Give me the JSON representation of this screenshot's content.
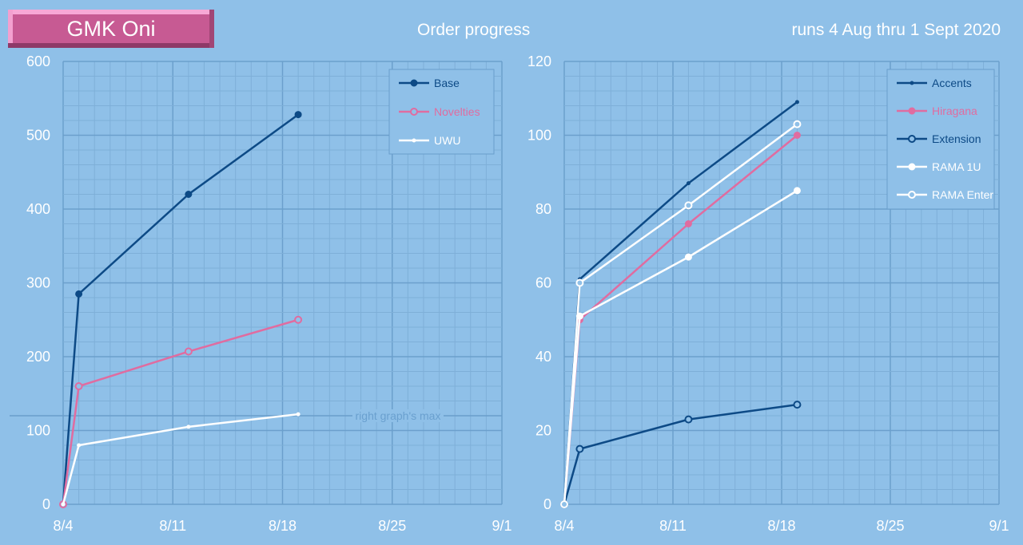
{
  "title": "GMK Oni",
  "subtitle_center": "Order progress",
  "subtitle_right": "runs 4 Aug thru 1 Sept 2020",
  "colors": {
    "background": "#8fc0e8",
    "dark_blue": "#0d4a86",
    "pink": "#e06ca0",
    "white": "#ffffff",
    "grid_minor": "#7eafd8",
    "grid_major": "#6b9fcc",
    "title_badge": "#c75a93"
  },
  "chart_data": [
    {
      "type": "line",
      "x_ticks": [
        "8/4",
        "8/11",
        "8/18",
        "8/25",
        "9/1"
      ],
      "xlim": [
        "2020-08-04",
        "2020-09-01"
      ],
      "ylim": [
        0,
        600
      ],
      "y_ticks": [
        "0",
        "100",
        "200",
        "300",
        "400",
        "500",
        "600"
      ],
      "grid": true,
      "legend_position": "top-right",
      "annotation": {
        "text": "right graph's max",
        "y": 120
      },
      "series": [
        {
          "name": "Base",
          "color": "#0d4a86",
          "marker": "filled-circle",
          "points": [
            [
              "2020-08-04",
              0
            ],
            [
              "2020-08-05",
              285
            ],
            [
              "2020-08-12",
              420
            ],
            [
              "2020-08-19",
              528
            ]
          ]
        },
        {
          "name": "Novelties",
          "color": "#e06ca0",
          "marker": "open-circle",
          "points": [
            [
              "2020-08-04",
              0
            ],
            [
              "2020-08-05",
              160
            ],
            [
              "2020-08-12",
              207
            ],
            [
              "2020-08-19",
              250
            ]
          ]
        },
        {
          "name": "UWU",
          "color": "#ffffff",
          "marker": "small-dot",
          "points": [
            [
              "2020-08-04",
              0
            ],
            [
              "2020-08-05",
              80
            ],
            [
              "2020-08-12",
              105
            ],
            [
              "2020-08-19",
              122
            ]
          ]
        }
      ]
    },
    {
      "type": "line",
      "x_ticks": [
        "8/4",
        "8/11",
        "8/18",
        "8/25",
        "9/1"
      ],
      "xlim": [
        "2020-08-04",
        "2020-09-01"
      ],
      "ylim": [
        0,
        120
      ],
      "y_ticks": [
        "0",
        "20",
        "40",
        "60",
        "80",
        "100",
        "120"
      ],
      "grid": true,
      "legend_position": "top-right",
      "series": [
        {
          "name": "Accents",
          "color": "#0d4a86",
          "marker": "small-dot",
          "points": [
            [
              "2020-08-04",
              0
            ],
            [
              "2020-08-05",
              61
            ],
            [
              "2020-08-12",
              87
            ],
            [
              "2020-08-19",
              109
            ]
          ]
        },
        {
          "name": "Hiragana",
          "color": "#e06ca0",
          "marker": "filled-circle",
          "points": [
            [
              "2020-08-04",
              0
            ],
            [
              "2020-08-05",
              50
            ],
            [
              "2020-08-12",
              76
            ],
            [
              "2020-08-19",
              100
            ]
          ]
        },
        {
          "name": "Extension",
          "color": "#0d4a86",
          "marker": "open-circle",
          "points": [
            [
              "2020-08-04",
              0
            ],
            [
              "2020-08-05",
              15
            ],
            [
              "2020-08-12",
              23
            ],
            [
              "2020-08-19",
              27
            ]
          ]
        },
        {
          "name": "RAMA 1U",
          "color": "#ffffff",
          "marker": "filled-circle",
          "points": [
            [
              "2020-08-04",
              0
            ],
            [
              "2020-08-05",
              51
            ],
            [
              "2020-08-12",
              67
            ],
            [
              "2020-08-19",
              85
            ]
          ]
        },
        {
          "name": "RAMA Enter",
          "color": "#ffffff",
          "marker": "open-circle",
          "points": [
            [
              "2020-08-04",
              0
            ],
            [
              "2020-08-05",
              60
            ],
            [
              "2020-08-12",
              81
            ],
            [
              "2020-08-19",
              103
            ]
          ]
        }
      ]
    }
  ]
}
